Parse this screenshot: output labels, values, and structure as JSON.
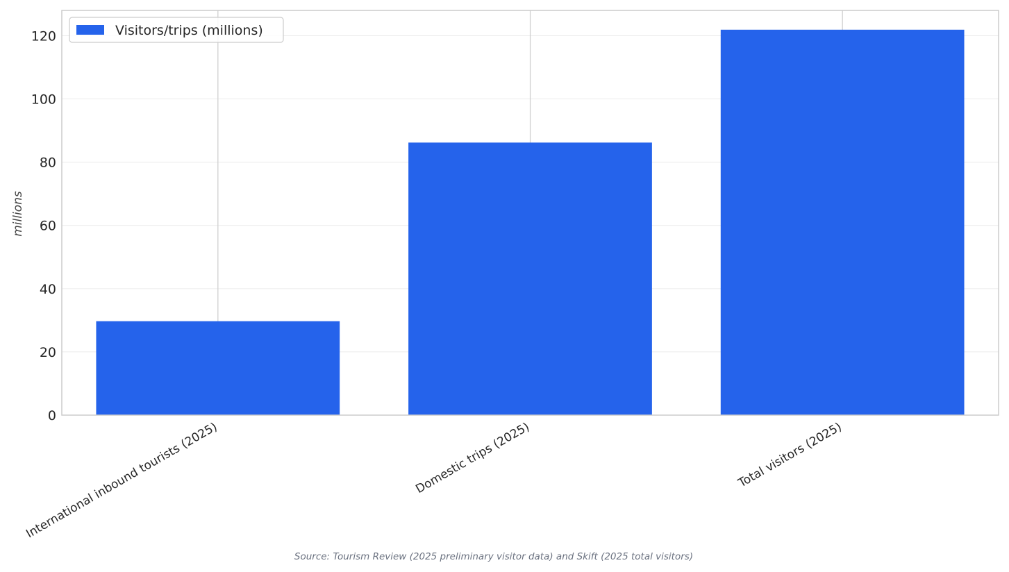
{
  "chart_data": {
    "type": "bar",
    "categories": [
      "International inbound tourists (2025)",
      "Domestic trips (2025)",
      "Total visitors (2025)"
    ],
    "series": [
      {
        "name": "Visitors/trips (millions)",
        "values": [
          29.7,
          86.2,
          121.9
        ],
        "color": "#2563eb"
      }
    ],
    "xlabel": "",
    "ylabel": "millions",
    "ylim": [
      0,
      128
    ],
    "yticks": [
      0,
      20,
      40,
      60,
      80,
      100,
      120
    ],
    "grid": true,
    "legend_position": "top-left",
    "source_note": "Source: Tourism Review (2025 preliminary visitor data) and Skift (2025 total visitors)"
  }
}
